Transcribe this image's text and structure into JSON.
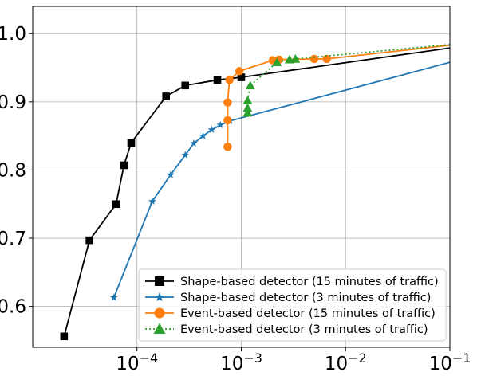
{
  "chart_data": {
    "type": "line",
    "x_scale": "log",
    "xlim": [
      1e-05,
      0.1
    ],
    "ylim": [
      0.54,
      1.04
    ],
    "x_ticks": [
      {
        "value": 0.0001,
        "base": "10",
        "exp": "−4"
      },
      {
        "value": 0.001,
        "base": "10",
        "exp": "−3"
      },
      {
        "value": 0.01,
        "base": "10",
        "exp": "−2"
      },
      {
        "value": 0.1,
        "base": "10",
        "exp": "−1"
      }
    ],
    "y_ticks": [
      {
        "value": 0.6,
        "label": "0.6"
      },
      {
        "value": 0.7,
        "label": "0.7"
      },
      {
        "value": 0.8,
        "label": "0.8"
      },
      {
        "value": 0.9,
        "label": "0.9"
      },
      {
        "value": 1.0,
        "label": "1.0"
      }
    ],
    "grid": true,
    "legend_position": "lower-right",
    "series": [
      {
        "name": "Shape-based detector (15 minutes of traffic)",
        "color": "#000000",
        "marker": "square",
        "line": "solid",
        "x": [
          2e-05,
          3.5e-05,
          6.3e-05,
          7.5e-05,
          8.8e-05,
          0.00019,
          0.00029,
          0.00059,
          0.001,
          0.1
        ],
        "y": [
          0.556,
          0.697,
          0.75,
          0.807,
          0.84,
          0.908,
          0.924,
          0.932,
          0.936,
          0.979
        ]
      },
      {
        "name": "Shape-based detector  (3 minutes of traffic)",
        "color": "#1f77b4",
        "marker": "star",
        "line": "solid",
        "x": [
          6e-05,
          0.00014,
          0.00021,
          0.00029,
          0.00035,
          0.00043,
          0.00052,
          0.00063,
          0.00078,
          0.1
        ],
        "y": [
          0.613,
          0.754,
          0.793,
          0.822,
          0.839,
          0.85,
          0.859,
          0.866,
          0.872,
          0.958
        ]
      },
      {
        "name": "Event-based detector (15 minutes of traffic)",
        "color": "#ff7f0e",
        "marker": "circle",
        "line": "solid",
        "x": [
          0.00074,
          0.00074,
          0.00074,
          0.00077,
          0.00096,
          0.002,
          0.0023,
          0.005,
          0.0066,
          0.1
        ],
        "y": [
          0.834,
          0.873,
          0.899,
          0.932,
          0.945,
          0.961,
          0.962,
          0.963,
          0.963,
          0.983
        ]
      },
      {
        "name": "Event-based detector (3 minutes of traffic)",
        "color": "#2ca02c",
        "marker": "triangle",
        "line": "dotted",
        "x": [
          0.00115,
          0.00115,
          0.00115,
          0.00122,
          0.0022,
          0.0029,
          0.0033,
          0.1
        ],
        "y": [
          0.884,
          0.891,
          0.902,
          0.924,
          0.958,
          0.962,
          0.963,
          0.984
        ]
      }
    ]
  }
}
